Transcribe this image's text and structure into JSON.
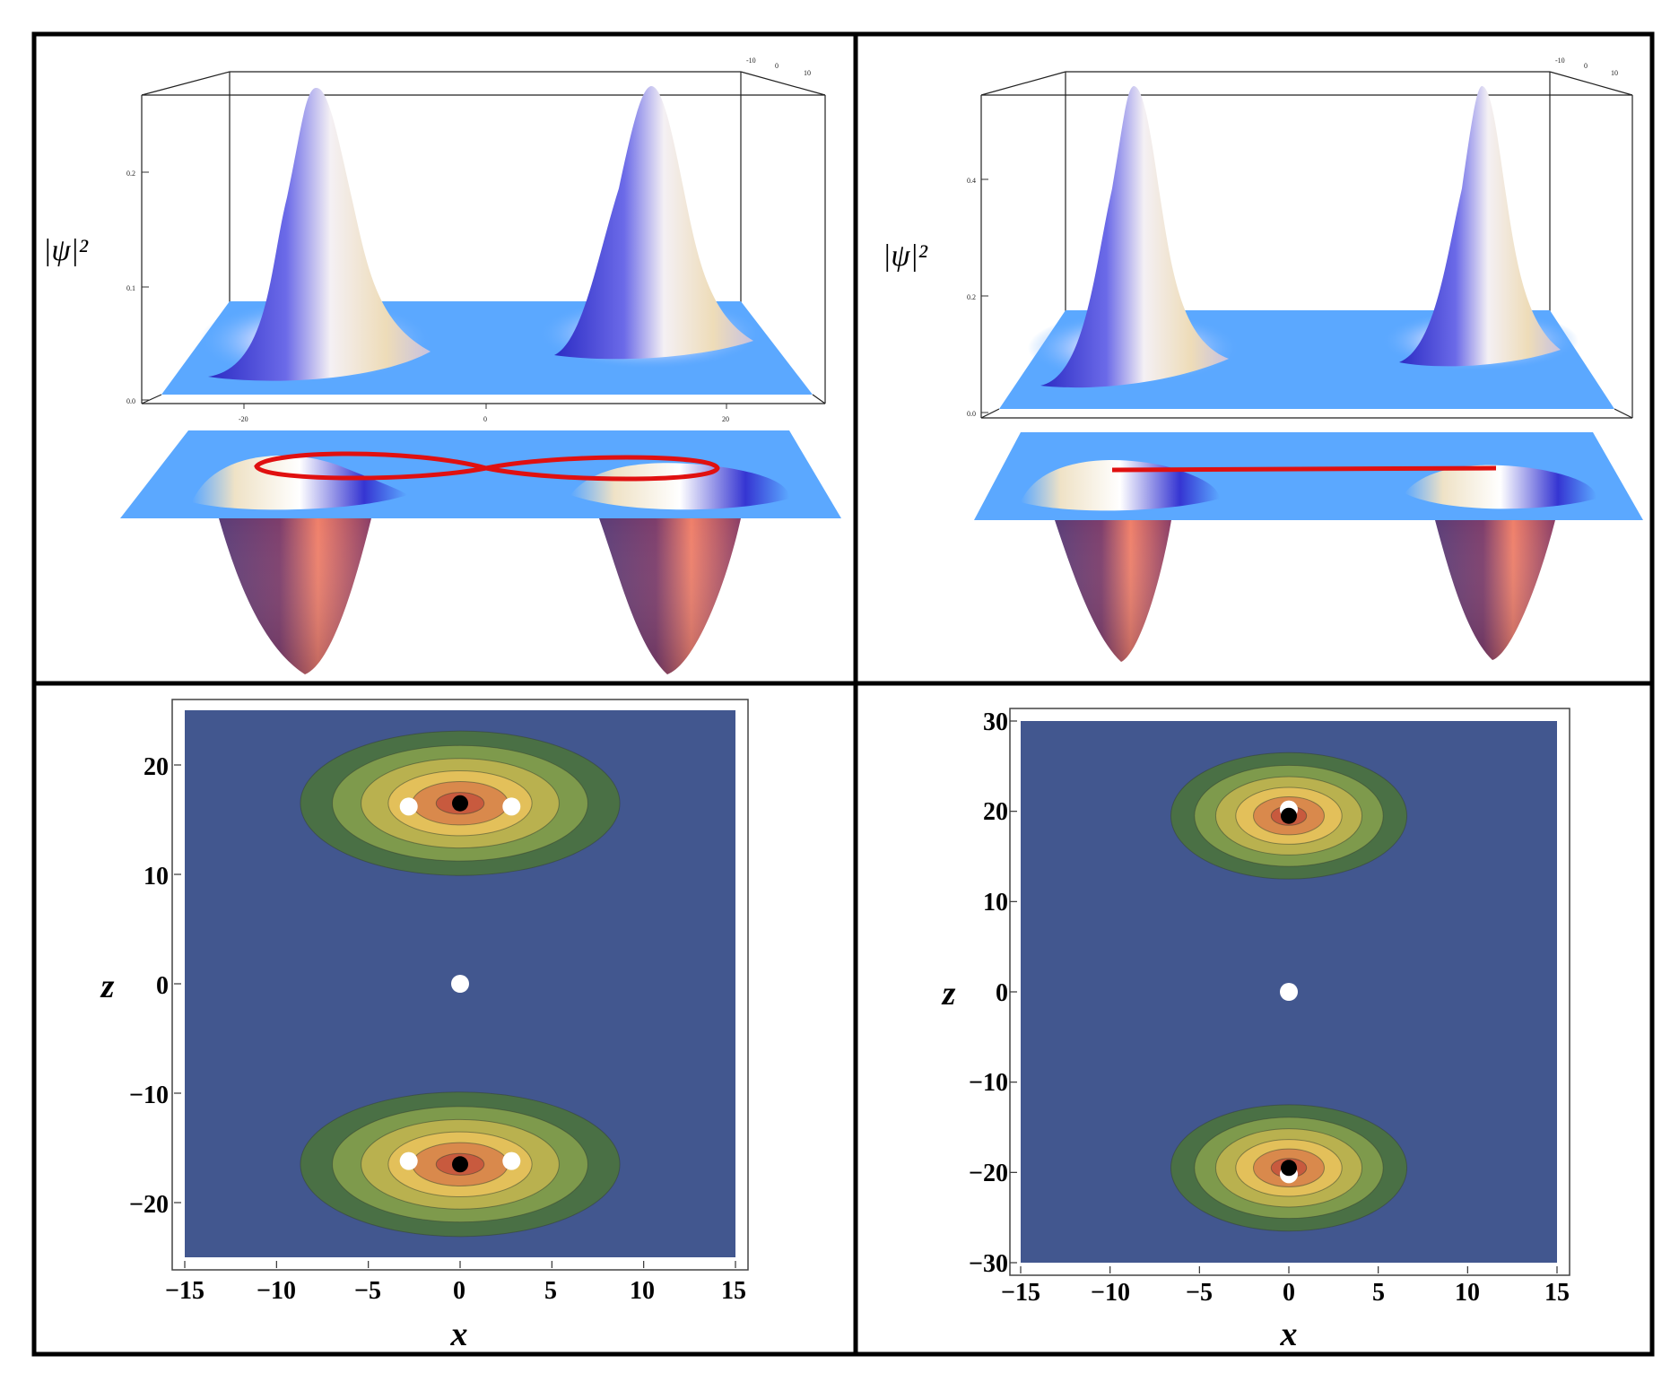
{
  "panels": {
    "top_left": {
      "ylabel": "|ψ|²",
      "ytick_labels": [
        "0.2",
        "0.1",
        "0.0"
      ],
      "xtick_labels": [
        "-20",
        "0",
        "20"
      ],
      "back_tick_labels": [
        "-10",
        "0",
        "10"
      ],
      "trajectory": "figure-eight"
    },
    "top_right": {
      "ylabel": "|ψ|²",
      "ytick_labels": [
        "0.4",
        "0.2",
        "0.0"
      ],
      "back_tick_labels": [
        "-10",
        "0",
        "10"
      ],
      "trajectory": "line"
    },
    "bottom_left": {
      "xlabel": "x",
      "ylabel": "z",
      "xtick_labels": [
        "−15",
        "−10",
        "−5",
        "0",
        "5",
        "10",
        "15"
      ],
      "ytick_labels": [
        "20",
        "10",
        "0",
        "−10",
        "−20"
      ]
    },
    "bottom_right": {
      "xlabel": "x",
      "ylabel": "z",
      "xtick_labels": [
        "−15",
        "−10",
        "−5",
        "0",
        "5",
        "10",
        "15"
      ],
      "ytick_labels": [
        "30",
        "20",
        "10",
        "0",
        "−10",
        "−20",
        "−30"
      ]
    }
  },
  "colors": {
    "contour_background": "#42578f",
    "contour_levels": [
      "#4a7045",
      "#7e9a4c",
      "#b9b14f",
      "#e3c05a",
      "#d9894c",
      "#c85a3e"
    ],
    "trajectory": "#e01010",
    "surface_flat": "#5ba8ff",
    "peak_blue": "#3a3ad0",
    "peak_cream": "#f2e2c0",
    "well_dark": "#4a3d70",
    "well_salmon": "#f58a6a"
  },
  "chart_data": [
    {
      "type": "surface",
      "panel": "top_left",
      "ylabel": "|ψ|²",
      "zlim": [
        0.0,
        0.25
      ],
      "xlim": [
        -25,
        25
      ],
      "peaks_x": [
        -17,
        17
      ],
      "peak_height": 0.25,
      "trajectory": "figure-eight"
    },
    {
      "type": "surface",
      "panel": "top_right",
      "ylabel": "|ψ|²",
      "zlim": [
        0.0,
        0.5
      ],
      "peak_height": 0.5,
      "trajectory": "line"
    },
    {
      "type": "heatmap",
      "panel": "bottom_left",
      "xlabel": "x",
      "ylabel": "z",
      "xlim": [
        -15,
        15
      ],
      "ylim": [
        -25,
        25
      ],
      "lobes_z": [
        16.5,
        -16.5
      ],
      "black_points": [
        [
          0,
          16.5
        ],
        [
          0,
          -16.5
        ]
      ],
      "white_points": [
        [
          -2.8,
          16.2
        ],
        [
          2.8,
          16.2
        ],
        [
          0,
          0
        ],
        [
          -2.8,
          -16.2
        ],
        [
          2.8,
          -16.2
        ]
      ]
    },
    {
      "type": "heatmap",
      "panel": "bottom_right",
      "xlabel": "x",
      "ylabel": "z",
      "xlim": [
        -15,
        15
      ],
      "ylim": [
        -30,
        30
      ],
      "lobes_z": [
        19.5,
        -19.5
      ],
      "black_points": [
        [
          0,
          19.5
        ],
        [
          0,
          -19.5
        ]
      ],
      "white_points": [
        [
          0,
          20.2
        ],
        [
          0,
          0
        ],
        [
          0,
          -20.2
        ]
      ]
    }
  ]
}
